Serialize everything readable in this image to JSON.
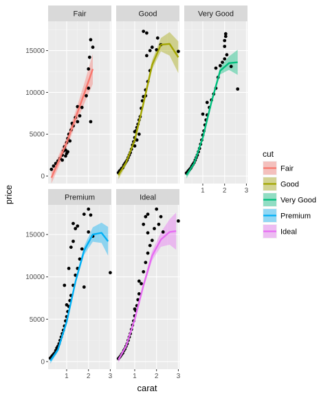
{
  "chart_data": {
    "type": "scatter",
    "facet_by": "cut",
    "xlabel": "carat",
    "ylabel": "price",
    "xlim": [
      0.15,
      3.05
    ],
    "ylim": [
      -900,
      18500
    ],
    "x_ticks": [
      1,
      2,
      3
    ],
    "y_ticks": [
      0,
      5000,
      10000,
      15000
    ],
    "y_tick_labels": [
      "0",
      "5000",
      "10000",
      "15000"
    ],
    "grid": true,
    "legend": {
      "title": "cut",
      "position": "right",
      "entries": [
        "Fair",
        "Good",
        "Very Good",
        "Premium",
        "Ideal"
      ]
    },
    "smooth": "loess curve with shaded confidence band",
    "panels": [
      {
        "name": "Fair",
        "color": "#F8766D",
        "points": [
          [
            0.3,
            800
          ],
          [
            0.4,
            1200
          ],
          [
            0.5,
            1500
          ],
          [
            0.6,
            1800
          ],
          [
            0.7,
            2100
          ],
          [
            0.8,
            2500
          ],
          [
            0.85,
            3000
          ],
          [
            0.9,
            3500
          ],
          [
            0.95,
            3100
          ],
          [
            1.0,
            4000
          ],
          [
            1.0,
            2700
          ],
          [
            1.05,
            4500
          ],
          [
            1.1,
            5000
          ],
          [
            1.15,
            4200
          ],
          [
            1.2,
            5500
          ],
          [
            1.25,
            6300
          ],
          [
            1.3,
            6000
          ],
          [
            1.4,
            7000
          ],
          [
            1.5,
            6500
          ],
          [
            1.5,
            8300
          ],
          [
            1.6,
            7200
          ],
          [
            1.7,
            8200
          ],
          [
            2.0,
            10500
          ],
          [
            2.0,
            12800
          ],
          [
            2.05,
            14200
          ],
          [
            2.1,
            16300
          ],
          [
            2.2,
            15400
          ],
          [
            2.1,
            6500
          ],
          [
            1.9,
            9600
          ],
          [
            0.8,
            1900
          ],
          [
            0.95,
            2400
          ],
          [
            1.05,
            2900
          ]
        ],
        "smooth": [
          [
            0.3,
            -200
          ],
          [
            0.6,
            1600
          ],
          [
            1.0,
            4000
          ],
          [
            1.4,
            6900
          ],
          [
            1.8,
            9800
          ],
          [
            2.2,
            12800
          ]
        ],
        "band": [
          700,
          700,
          600,
          800,
          1200,
          1800
        ]
      },
      {
        "name": "Good",
        "color": "#A3A500",
        "points": [
          [
            0.25,
            400
          ],
          [
            0.3,
            600
          ],
          [
            0.35,
            700
          ],
          [
            0.4,
            900
          ],
          [
            0.45,
            1000
          ],
          [
            0.5,
            1300
          ],
          [
            0.55,
            1500
          ],
          [
            0.6,
            1700
          ],
          [
            0.65,
            1900
          ],
          [
            0.7,
            2200
          ],
          [
            0.75,
            2500
          ],
          [
            0.8,
            2800
          ],
          [
            0.85,
            3200
          ],
          [
            0.9,
            3700
          ],
          [
            0.95,
            4100
          ],
          [
            1.0,
            4600
          ],
          [
            1.0,
            5300
          ],
          [
            1.05,
            5400
          ],
          [
            1.1,
            5800
          ],
          [
            1.15,
            6200
          ],
          [
            1.2,
            6700
          ],
          [
            1.25,
            7100
          ],
          [
            1.3,
            8100
          ],
          [
            1.35,
            9000
          ],
          [
            1.4,
            9500
          ],
          [
            1.5,
            9600
          ],
          [
            1.5,
            10300
          ],
          [
            1.6,
            11300
          ],
          [
            1.7,
            12600
          ],
          [
            1.55,
            14400
          ],
          [
            1.7,
            15000
          ],
          [
            1.4,
            17300
          ],
          [
            1.55,
            17100
          ],
          [
            1.8,
            15400
          ],
          [
            2.0,
            15100
          ],
          [
            2.05,
            16500
          ],
          [
            2.2,
            15700
          ],
          [
            3.0,
            14900
          ],
          [
            1.0,
            3600
          ],
          [
            1.1,
            4300
          ],
          [
            1.2,
            5000
          ]
        ],
        "smooth": [
          [
            0.25,
            100
          ],
          [
            0.6,
            1600
          ],
          [
            1.0,
            4300
          ],
          [
            1.4,
            8700
          ],
          [
            1.8,
            13300
          ],
          [
            2.2,
            15700
          ],
          [
            2.6,
            15800
          ],
          [
            3.0,
            14200
          ]
        ],
        "band": [
          500,
          350,
          350,
          450,
          550,
          800,
          1400,
          1900
        ]
      },
      {
        "name": "Very Good",
        "color": "#00BF7D",
        "points": [
          [
            0.25,
            350
          ],
          [
            0.3,
            500
          ],
          [
            0.35,
            650
          ],
          [
            0.4,
            800
          ],
          [
            0.45,
            950
          ],
          [
            0.5,
            1200
          ],
          [
            0.55,
            1400
          ],
          [
            0.6,
            1600
          ],
          [
            0.65,
            1900
          ],
          [
            0.7,
            2200
          ],
          [
            0.75,
            2500
          ],
          [
            0.8,
            2900
          ],
          [
            0.85,
            3300
          ],
          [
            0.9,
            3800
          ],
          [
            0.95,
            4300
          ],
          [
            1.0,
            4900
          ],
          [
            1.05,
            5400
          ],
          [
            1.1,
            6100
          ],
          [
            1.15,
            6700
          ],
          [
            1.2,
            7300
          ],
          [
            1.3,
            8200
          ],
          [
            1.4,
            9100
          ],
          [
            1.5,
            9800
          ],
          [
            1.6,
            10500
          ],
          [
            1.7,
            11800
          ],
          [
            1.8,
            13200
          ],
          [
            1.9,
            13600
          ],
          [
            2.0,
            14000
          ],
          [
            2.0,
            15500
          ],
          [
            2.05,
            16700
          ],
          [
            2.05,
            17000
          ],
          [
            2.0,
            16200
          ],
          [
            2.1,
            14500
          ],
          [
            2.3,
            13100
          ],
          [
            2.6,
            10400
          ],
          [
            1.6,
            12900
          ],
          [
            1.2,
            8800
          ],
          [
            1.0,
            7400
          ]
        ],
        "smooth": [
          [
            0.25,
            100
          ],
          [
            0.6,
            1500
          ],
          [
            1.0,
            4600
          ],
          [
            1.4,
            8900
          ],
          [
            1.8,
            12600
          ],
          [
            2.2,
            13500
          ],
          [
            2.6,
            13600
          ]
        ],
        "band": [
          400,
          250,
          250,
          300,
          450,
          800,
          1500
        ]
      },
      {
        "name": "Premium",
        "color": "#00B0F6",
        "points": [
          [
            0.25,
            400
          ],
          [
            0.3,
            550
          ],
          [
            0.35,
            700
          ],
          [
            0.4,
            850
          ],
          [
            0.45,
            1000
          ],
          [
            0.5,
            1300
          ],
          [
            0.55,
            1600
          ],
          [
            0.6,
            1800
          ],
          [
            0.65,
            2100
          ],
          [
            0.7,
            2500
          ],
          [
            0.75,
            2900
          ],
          [
            0.8,
            3300
          ],
          [
            0.85,
            3700
          ],
          [
            0.9,
            4200
          ],
          [
            0.95,
            4800
          ],
          [
            1.0,
            5300
          ],
          [
            1.05,
            5900
          ],
          [
            1.1,
            6500
          ],
          [
            1.15,
            7200
          ],
          [
            1.2,
            7800
          ],
          [
            1.3,
            9000
          ],
          [
            1.4,
            10200
          ],
          [
            1.5,
            11000
          ],
          [
            1.6,
            12100
          ],
          [
            1.7,
            13300
          ],
          [
            1.2,
            13500
          ],
          [
            1.3,
            14200
          ],
          [
            1.4,
            15700
          ],
          [
            1.3,
            16300
          ],
          [
            1.5,
            16000
          ],
          [
            1.8,
            17400
          ],
          [
            2.0,
            18000
          ],
          [
            2.1,
            17300
          ],
          [
            2.0,
            15300
          ],
          [
            2.2,
            14800
          ],
          [
            3.0,
            10500
          ],
          [
            1.8,
            8800
          ],
          [
            1.0,
            6700
          ],
          [
            1.1,
            11000
          ],
          [
            0.9,
            9000
          ]
        ],
        "smooth": [
          [
            0.25,
            100
          ],
          [
            0.6,
            1400
          ],
          [
            1.0,
            4700
          ],
          [
            1.4,
            9400
          ],
          [
            1.8,
            13100
          ],
          [
            2.2,
            15000
          ],
          [
            2.6,
            15200
          ],
          [
            2.9,
            14200
          ]
        ],
        "band": [
          350,
          250,
          250,
          300,
          500,
          850,
          1200,
          1700
        ]
      },
      {
        "name": "Ideal",
        "color": "#E76BF3",
        "points": [
          [
            0.25,
            350
          ],
          [
            0.3,
            500
          ],
          [
            0.35,
            650
          ],
          [
            0.4,
            850
          ],
          [
            0.45,
            1000
          ],
          [
            0.5,
            1300
          ],
          [
            0.55,
            1500
          ],
          [
            0.6,
            1800
          ],
          [
            0.65,
            2100
          ],
          [
            0.7,
            2500
          ],
          [
            0.75,
            2900
          ],
          [
            0.8,
            3300
          ],
          [
            0.85,
            3800
          ],
          [
            0.9,
            4300
          ],
          [
            0.95,
            4800
          ],
          [
            1.0,
            5400
          ],
          [
            1.05,
            6000
          ],
          [
            1.1,
            6600
          ],
          [
            1.15,
            7300
          ],
          [
            1.2,
            8000
          ],
          [
            1.3,
            9200
          ],
          [
            1.4,
            10600
          ],
          [
            1.5,
            11700
          ],
          [
            1.6,
            12800
          ],
          [
            1.7,
            13700
          ],
          [
            1.8,
            14300
          ],
          [
            1.4,
            16200
          ],
          [
            1.5,
            17100
          ],
          [
            1.6,
            17400
          ],
          [
            2.0,
            18000
          ],
          [
            2.2,
            17100
          ],
          [
            2.1,
            16200
          ],
          [
            3.0,
            16600
          ],
          [
            1.0,
            6200
          ],
          [
            1.2,
            9500
          ],
          [
            1.6,
            15200
          ],
          [
            1.9,
            15700
          ],
          [
            2.3,
            15300
          ]
        ],
        "smooth": [
          [
            0.25,
            200
          ],
          [
            0.6,
            1800
          ],
          [
            1.0,
            5000
          ],
          [
            1.4,
            9000
          ],
          [
            1.8,
            12500
          ],
          [
            2.2,
            14400
          ],
          [
            2.6,
            15300
          ],
          [
            2.9,
            15400
          ]
        ],
        "band": [
          350,
          250,
          250,
          350,
          550,
          850,
          1500,
          2200
        ]
      }
    ]
  }
}
